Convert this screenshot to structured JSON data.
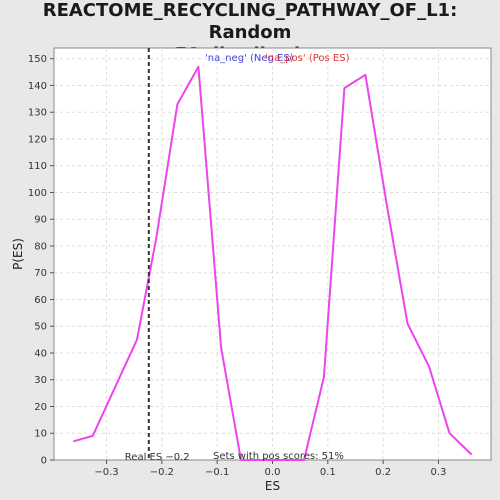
{
  "title_line1": "REACTOME_RECYCLING_PATHWAY_OF_L1: Random",
  "title_line2": "ES distribution",
  "chart_data": {
    "type": "line",
    "title": "REACTOME_RECYCLING_PATHWAY_OF_L1: Random ES distribution",
    "xlabel": "ES",
    "ylabel": "P(ES)",
    "xlim": [
      -0.395,
      0.395
    ],
    "ylim": [
      0,
      154
    ],
    "x_ticks": [
      -0.3,
      -0.2,
      -0.1,
      0.0,
      0.1,
      0.2,
      0.3
    ],
    "x_tick_labels": [
      "−0.3",
      "−0.2",
      "−0.1",
      "0.0",
      "0.1",
      "0.2",
      "0.3"
    ],
    "y_ticks": [
      0,
      10,
      20,
      30,
      40,
      50,
      60,
      70,
      80,
      90,
      100,
      110,
      120,
      130,
      140,
      150
    ],
    "grid": true,
    "series": [
      {
        "name": "",
        "color": "#ee44ee",
        "x": [
          -0.36,
          -0.325,
          -0.245,
          -0.21,
          -0.172,
          -0.134,
          -0.093,
          -0.057,
          0.0,
          0.057,
          0.093,
          0.13,
          0.168,
          0.206,
          0.244,
          0.283,
          0.32,
          0.36
        ],
        "y": [
          7,
          9,
          45,
          83,
          133,
          147,
          42,
          0,
          0,
          0,
          31,
          139,
          144,
          96,
          51,
          35,
          10,
          2
        ]
      }
    ],
    "real_es": -0.2236,
    "annotations": {
      "neg_label": "'na_neg' (Neg ES)",
      "neg_color": "#4444dd",
      "pos_label": "'na_pos' (Pos ES)",
      "pos_color": "#dd3333",
      "real_es_label": "Real ES −0.2",
      "pos_scores_label": "Sets with pos scores: 51%"
    }
  }
}
